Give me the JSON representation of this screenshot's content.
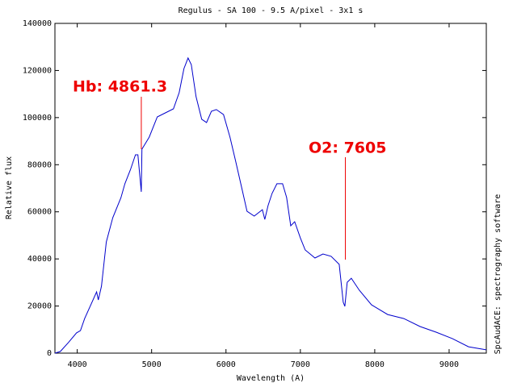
{
  "chart_data": {
    "type": "line",
    "title": "Regulus - SA 100 - 9.5 A/pixel - 3x1 s",
    "x_label": "Wavelength (A)",
    "y_label": "Relative flux",
    "side_note": "SpcAudACE: spectrography software",
    "color": "#0000cc",
    "x": [
      3700,
      3772,
      3880,
      3990,
      4043,
      4100,
      4174,
      4260,
      4283,
      4326,
      4391,
      4478,
      4587,
      4641,
      4717,
      4783,
      4815,
      4861,
      4870,
      4967,
      5076,
      5185,
      5293,
      5370,
      5435,
      5490,
      5533,
      5598,
      5674,
      5739,
      5804,
      5870,
      5967,
      6054,
      6130,
      6217,
      6283,
      6380,
      6489,
      6522,
      6565,
      6620,
      6685,
      6761,
      6815,
      6870,
      6924,
      7000,
      7065,
      7196,
      7304,
      7413,
      7522,
      7576,
      7598,
      7630,
      7685,
      7793,
      7957,
      8174,
      8391,
      8609,
      8826,
      9043,
      9261,
      9500
    ],
    "values": [
      0,
      700,
      4500,
      8600,
      9600,
      14700,
      19900,
      26000,
      22600,
      28400,
      47200,
      57500,
      66000,
      71900,
      78000,
      84200,
      84200,
      68500,
      86600,
      91700,
      100300,
      102000,
      103700,
      110600,
      120800,
      125300,
      122500,
      108900,
      99300,
      97900,
      102700,
      103400,
      101300,
      91700,
      81500,
      69500,
      60200,
      58200,
      60900,
      56800,
      62600,
      67800,
      71900,
      71900,
      66100,
      54100,
      55800,
      48900,
      43800,
      40400,
      42100,
      41100,
      37700,
      21600,
      19900,
      30100,
      31800,
      26700,
      20500,
      16400,
      14700,
      11300,
      8900,
      6200,
      2700,
      1400
    ],
    "xlim": [
      3700,
      9500
    ],
    "ylim": [
      0,
      140000
    ],
    "xticks": [
      4000,
      5000,
      6000,
      7000,
      8000,
      9000
    ],
    "yticks": [
      0,
      20000,
      40000,
      60000,
      80000,
      100000,
      120000,
      140000
    ],
    "annotations": [
      {
        "text": "Hb: 4861.3",
        "x": 4861.3
      },
      {
        "text": "O2: 7605",
        "x": 7605
      }
    ]
  }
}
